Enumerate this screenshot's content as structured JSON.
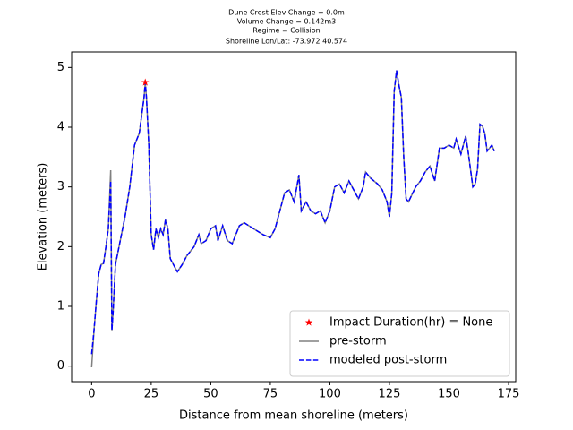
{
  "chart_data": {
    "type": "line",
    "title_lines": [
      "Dune Crest Elev Change = 0.0m",
      "Volume Change = 0.142m3",
      "Regime = Collision",
      "Shoreline Lon/Lat: -73.972 40.574"
    ],
    "x_label": "Distance from mean shoreline (meters)",
    "y_label": "Elevation (meters)",
    "xlim": [
      -8.4,
      178.0
    ],
    "ylim": [
      -0.26,
      5.26
    ],
    "xticks": [
      0,
      25,
      50,
      75,
      100,
      125,
      150,
      175
    ],
    "yticks": [
      0,
      1,
      2,
      3,
      4,
      5
    ],
    "grid": false,
    "legend": "lower right",
    "marker": {
      "name": "Impact Duration(hr) = None",
      "color": "#ff0000",
      "x": 22.5,
      "y": 4.75
    },
    "x": [
      0,
      1,
      2,
      3,
      4,
      5,
      6,
      7,
      8,
      8.5,
      9,
      10,
      12,
      14,
      16,
      18,
      20,
      21,
      22,
      22.5,
      23,
      24,
      25,
      26,
      27,
      28,
      29,
      30,
      31,
      32,
      33,
      35,
      36,
      38,
      40,
      43,
      45,
      46,
      48,
      50,
      52,
      53,
      55,
      57,
      59,
      62,
      64,
      68,
      72,
      75,
      77,
      79,
      81,
      83,
      85,
      87,
      88,
      90,
      92,
      94,
      96,
      98,
      100,
      102,
      104,
      106,
      108,
      110,
      112,
      114,
      115,
      117,
      120,
      122,
      124,
      125,
      126,
      127,
      128,
      129,
      130,
      131,
      132,
      133,
      136,
      138,
      140,
      142,
      144,
      146,
      148,
      150,
      152,
      153,
      155,
      157,
      158,
      160,
      161,
      162,
      163,
      164,
      165,
      166,
      168,
      169
    ],
    "series": [
      {
        "name": "pre-storm",
        "color": "#808080",
        "dash": false,
        "values": [
          -0.02,
          0.6,
          1.1,
          1.55,
          1.7,
          1.72,
          2.0,
          2.3,
          3.28,
          0.6,
          0.9,
          1.7,
          2.1,
          2.5,
          3.0,
          3.7,
          3.9,
          4.2,
          4.5,
          4.75,
          4.5,
          3.7,
          2.2,
          1.95,
          2.3,
          2.15,
          2.3,
          2.2,
          2.45,
          2.3,
          1.8,
          1.65,
          1.58,
          1.7,
          1.85,
          2.0,
          2.2,
          2.05,
          2.1,
          2.3,
          2.35,
          2.1,
          2.35,
          2.1,
          2.05,
          2.35,
          2.4,
          2.3,
          2.2,
          2.15,
          2.3,
          2.6,
          2.9,
          2.95,
          2.75,
          3.2,
          2.6,
          2.75,
          2.6,
          2.55,
          2.6,
          2.4,
          2.6,
          3.0,
          3.05,
          2.9,
          3.1,
          2.95,
          2.8,
          3.0,
          3.25,
          3.15,
          3.05,
          2.95,
          2.75,
          2.5,
          2.9,
          4.6,
          4.95,
          4.7,
          4.5,
          3.5,
          2.8,
          2.75,
          3.0,
          3.1,
          3.25,
          3.35,
          3.1,
          3.65,
          3.65,
          3.7,
          3.65,
          3.8,
          3.55,
          3.85,
          3.6,
          3.0,
          3.05,
          3.3,
          4.05,
          4.02,
          3.9,
          3.6,
          3.7,
          3.6
        ]
      },
      {
        "name": "modeled post-storm",
        "color": "#0000ff",
        "dash": true,
        "values": [
          0.2,
          0.6,
          1.1,
          1.55,
          1.7,
          1.72,
          2.0,
          2.3,
          3.1,
          0.6,
          0.9,
          1.7,
          2.1,
          2.5,
          3.0,
          3.7,
          3.9,
          4.2,
          4.5,
          4.75,
          4.5,
          3.7,
          2.2,
          1.95,
          2.3,
          2.15,
          2.3,
          2.2,
          2.45,
          2.3,
          1.8,
          1.65,
          1.58,
          1.7,
          1.85,
          2.0,
          2.2,
          2.05,
          2.1,
          2.3,
          2.35,
          2.1,
          2.35,
          2.1,
          2.05,
          2.35,
          2.4,
          2.3,
          2.2,
          2.15,
          2.3,
          2.6,
          2.9,
          2.95,
          2.75,
          3.2,
          2.6,
          2.75,
          2.6,
          2.55,
          2.6,
          2.4,
          2.6,
          3.0,
          3.05,
          2.9,
          3.1,
          2.95,
          2.8,
          3.0,
          3.25,
          3.15,
          3.05,
          2.95,
          2.75,
          2.5,
          2.9,
          4.6,
          4.95,
          4.7,
          4.5,
          3.5,
          2.8,
          2.75,
          3.0,
          3.1,
          3.25,
          3.35,
          3.1,
          3.65,
          3.65,
          3.7,
          3.65,
          3.8,
          3.55,
          3.85,
          3.6,
          3.0,
          3.05,
          3.3,
          4.05,
          4.02,
          3.9,
          3.6,
          3.7,
          3.6
        ]
      }
    ]
  }
}
